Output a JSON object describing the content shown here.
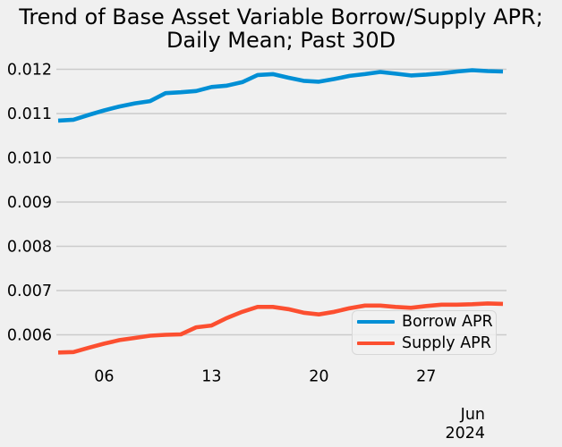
{
  "title": {
    "line1": "Trend of Base Asset Variable Borrow/Supply APR;",
    "line2": "Daily Mean; Past 30D",
    "full": "Trend of Base Asset Variable Borrow/Supply APR; Daily Mean; Past 30D"
  },
  "colors": {
    "background": "#f0f0f0",
    "grid": "#cbcbcb",
    "text": "#000000",
    "borrow_line": "#008fd5",
    "supply_line": "#fc4f30"
  },
  "legend": {
    "entries": [
      {
        "label": "Borrow APR",
        "color": "#008fd5"
      },
      {
        "label": "Supply APR",
        "color": "#fc4f30"
      }
    ]
  },
  "y_axis": {
    "tick_labels": [
      "0.006",
      "0.007",
      "0.008",
      "0.009",
      "0.010",
      "0.011",
      "0.012"
    ],
    "tick_values": [
      0.006,
      0.007,
      0.008,
      0.009,
      0.01,
      0.011,
      0.012
    ]
  },
  "x_axis": {
    "ticks": [
      {
        "label": "06",
        "date": "Jun 06"
      },
      {
        "label": "13",
        "date": "Jun 13"
      },
      {
        "label": "20",
        "date": "Jun 20"
      },
      {
        "label": "27",
        "date": "Jun 27"
      }
    ],
    "offset_line1": "Jun",
    "offset_line2": "2024"
  },
  "chart_data": {
    "type": "line",
    "title": "Trend of Base Asset Variable Borrow/Supply APR; Daily Mean; Past 30D",
    "xlabel": "",
    "ylabel": "",
    "grid": true,
    "legend_position": "lower right",
    "ylim": [
      0.00534,
      0.01215
    ],
    "x": [
      "Jun 03",
      "Jun 04",
      "Jun 05",
      "Jun 06",
      "Jun 07",
      "Jun 08",
      "Jun 09",
      "Jun 10",
      "Jun 11",
      "Jun 12",
      "Jun 13",
      "Jun 14",
      "Jun 15",
      "Jun 16",
      "Jun 17",
      "Jun 18",
      "Jun 19",
      "Jun 20",
      "Jun 21",
      "Jun 22",
      "Jun 23",
      "Jun 24",
      "Jun 25",
      "Jun 26",
      "Jun 27",
      "Jun 28",
      "Jun 29",
      "Jun 30",
      "Jul 01",
      "Jul 02"
    ],
    "series": [
      {
        "name": "Borrow APR",
        "color": "#008fd5",
        "values": [
          0.01084,
          0.01086,
          0.01097,
          0.01107,
          0.01116,
          0.01123,
          0.01128,
          0.01146,
          0.01148,
          0.01151,
          0.0116,
          0.01163,
          0.01171,
          0.01187,
          0.01189,
          0.01181,
          0.01174,
          0.01172,
          0.01178,
          0.01185,
          0.01189,
          0.01194,
          0.0119,
          0.01186,
          0.01188,
          0.01191,
          0.01195,
          0.01198,
          0.01196,
          0.01195
        ]
      },
      {
        "name": "Supply APR",
        "color": "#fc4f30",
        "values": [
          0.0056,
          0.00561,
          0.00571,
          0.0058,
          0.00588,
          0.00593,
          0.00598,
          0.006,
          0.00601,
          0.00617,
          0.00621,
          0.00638,
          0.00652,
          0.00663,
          0.00663,
          0.00658,
          0.0065,
          0.00646,
          0.00652,
          0.0066,
          0.00666,
          0.00666,
          0.00663,
          0.00661,
          0.00665,
          0.00668,
          0.00668,
          0.00669,
          0.00671,
          0.0067
        ]
      }
    ]
  }
}
